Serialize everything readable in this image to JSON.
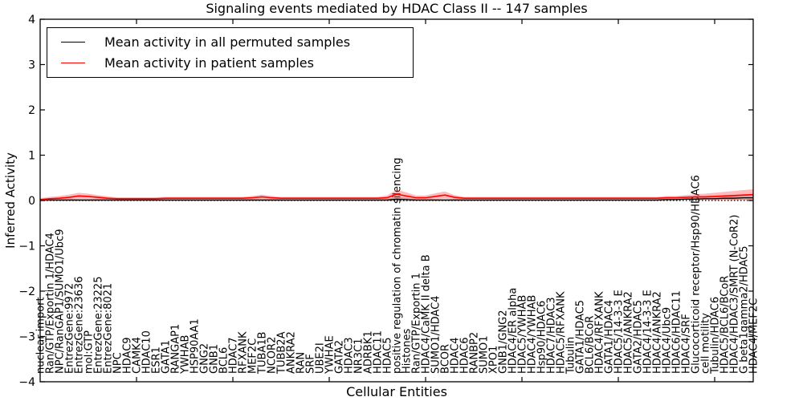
{
  "chart_data": {
    "type": "line",
    "title": "Signaling events mediated by HDAC Class II -- 147 samples",
    "xlabel": "Cellular Entities",
    "ylabel": "Inferred Activity",
    "ylim": [
      -4,
      4
    ],
    "yticks": [
      4,
      3,
      2,
      1,
      0,
      -1,
      -2,
      -3,
      -4
    ],
    "grid": false,
    "zero_line": "dotted",
    "legend_position": "upper left",
    "x_major_tick_every": 10,
    "categories": [
      "nuclear import",
      "Ran/GTP/Exportin 1/HDAC4",
      "NPC/RanGAP1/SUMO1/Ubc9",
      "EntrezGene:9972",
      "EntrezGene:23636",
      "mol:GTP",
      "EntrezGene:23225",
      "EntrezGene:8021",
      "NPC",
      "HDAC9",
      "CAMK4",
      "HDAC10",
      "ESR1",
      "GATA1",
      "RANGAP1",
      "YWHAB",
      "HSP90AA1",
      "GNG2",
      "GNB1",
      "BCL6",
      "HDAC7",
      "RFXANK",
      "MEF2C",
      "TUBA1B",
      "NCOR2",
      "TUBB2A",
      "ANKRA2",
      "RAN",
      "SRF",
      "UBE2I",
      "YWHAE",
      "GATA2",
      "HDAC3",
      "NR3C1",
      "ADRBK1",
      "HDAC11",
      "HDAC5",
      "positive regulation of chromatin silencing",
      "Histones",
      "Ran/GTP/Exportin 1",
      "HDAC4/CaMK II delta B",
      "SUMO1/HDAC4",
      "BCOR",
      "HDAC4",
      "HDAC6",
      "RANBP2",
      "SUMO1",
      "XPO1",
      "GNB1/GNG2",
      "HDAC4/ER alpha",
      "HDAC5/YWHAB",
      "HDAC4/YWHAB",
      "Hsp90/HDAC6",
      "HDAC7/HDAC3",
      "HDAC5/RFXANK",
      "Tubulin",
      "GATA1/HDAC5",
      "BCL6/BCoR",
      "HDAC4/RFXANK",
      "GATA1/HDAC4",
      "HDAC5/14-3-3 E",
      "HDAC5/ANKRA2",
      "GATA2/HDAC5",
      "HDAC4/14-3-3 E",
      "HDAC4/ANKRA2",
      "HDAC4/Ubc9",
      "HDAC6/HDAC11",
      "HDAC4/SRF",
      "Glucocorticoid receptor/Hsp90/HDAC6",
      "cell motility",
      "Tubulin/HDAC6",
      "HDAC5/BCL6/BCoR",
      "HDAC4/HDAC3/SMRT (N-CoR2)",
      "G beta1gamma2/HDAC5",
      "HDAC4/MEF2C"
    ],
    "series": [
      {
        "name": "Mean activity in all permuted samples",
        "color": "#000000",
        "band_fill": "rgba(120,120,120,0.35)",
        "values": [
          0.01,
          0.01,
          0.01,
          0.01,
          0.01,
          0.01,
          0.01,
          0.01,
          0.01,
          0.01,
          0.01,
          0.01,
          0.01,
          0.01,
          0.01,
          0.01,
          0.01,
          0.01,
          0.01,
          0.01,
          0.01,
          0.01,
          0.01,
          0.01,
          0.01,
          0.01,
          0.01,
          0.01,
          0.01,
          0.01,
          0.01,
          0.01,
          0.01,
          0.01,
          0.01,
          0.01,
          0.01,
          0.03,
          0.02,
          0.01,
          0.01,
          0.01,
          0.01,
          0.01,
          0.01,
          0.01,
          0.01,
          0.01,
          0.01,
          0.01,
          0.01,
          0.01,
          0.01,
          0.01,
          0.01,
          0.01,
          0.01,
          0.01,
          0.01,
          0.01,
          0.01,
          0.01,
          0.01,
          0.01,
          0.01,
          0.02,
          0.02,
          0.03,
          0.03,
          0.04,
          0.04,
          0.05,
          0.05,
          0.06,
          0.06
        ],
        "band": [
          0.02,
          0.02,
          0.02,
          0.02,
          0.02,
          0.02,
          0.02,
          0.02,
          0.02,
          0.02,
          0.02,
          0.02,
          0.02,
          0.02,
          0.02,
          0.02,
          0.02,
          0.02,
          0.02,
          0.02,
          0.02,
          0.02,
          0.02,
          0.02,
          0.02,
          0.02,
          0.02,
          0.02,
          0.02,
          0.02,
          0.02,
          0.02,
          0.02,
          0.02,
          0.02,
          0.02,
          0.02,
          0.05,
          0.04,
          0.02,
          0.02,
          0.02,
          0.02,
          0.02,
          0.02,
          0.02,
          0.02,
          0.02,
          0.02,
          0.02,
          0.02,
          0.02,
          0.02,
          0.02,
          0.02,
          0.02,
          0.02,
          0.02,
          0.02,
          0.02,
          0.02,
          0.02,
          0.02,
          0.02,
          0.02,
          0.02,
          0.02,
          0.02,
          0.03,
          0.03,
          0.04,
          0.04,
          0.05,
          0.05,
          0.05
        ]
      },
      {
        "name": "Mean activity in patient samples",
        "color": "#ff0000",
        "band_fill": "rgba(255,60,60,0.35)",
        "values": [
          0.02,
          0.04,
          0.05,
          0.07,
          0.1,
          0.09,
          0.07,
          0.05,
          0.04,
          0.04,
          0.04,
          0.04,
          0.04,
          0.05,
          0.05,
          0.05,
          0.05,
          0.05,
          0.05,
          0.05,
          0.05,
          0.05,
          0.06,
          0.08,
          0.06,
          0.05,
          0.05,
          0.05,
          0.05,
          0.05,
          0.05,
          0.05,
          0.05,
          0.05,
          0.05,
          0.05,
          0.06,
          0.14,
          0.1,
          0.06,
          0.06,
          0.09,
          0.12,
          0.07,
          0.05,
          0.05,
          0.05,
          0.05,
          0.05,
          0.05,
          0.05,
          0.05,
          0.05,
          0.05,
          0.05,
          0.05,
          0.05,
          0.05,
          0.05,
          0.05,
          0.05,
          0.05,
          0.05,
          0.05,
          0.05,
          0.06,
          0.06,
          0.07,
          0.08,
          0.08,
          0.09,
          0.1,
          0.11,
          0.12,
          0.13
        ],
        "band": [
          0.03,
          0.04,
          0.05,
          0.06,
          0.07,
          0.06,
          0.05,
          0.04,
          0.03,
          0.03,
          0.03,
          0.03,
          0.03,
          0.03,
          0.03,
          0.03,
          0.03,
          0.03,
          0.03,
          0.03,
          0.03,
          0.03,
          0.04,
          0.05,
          0.04,
          0.03,
          0.03,
          0.03,
          0.03,
          0.03,
          0.03,
          0.03,
          0.03,
          0.03,
          0.03,
          0.03,
          0.05,
          0.1,
          0.08,
          0.05,
          0.05,
          0.07,
          0.08,
          0.05,
          0.03,
          0.03,
          0.03,
          0.03,
          0.03,
          0.03,
          0.03,
          0.03,
          0.03,
          0.03,
          0.03,
          0.03,
          0.03,
          0.03,
          0.03,
          0.03,
          0.03,
          0.03,
          0.03,
          0.03,
          0.03,
          0.04,
          0.04,
          0.05,
          0.06,
          0.07,
          0.08,
          0.09,
          0.1,
          0.11,
          0.12
        ]
      }
    ]
  }
}
